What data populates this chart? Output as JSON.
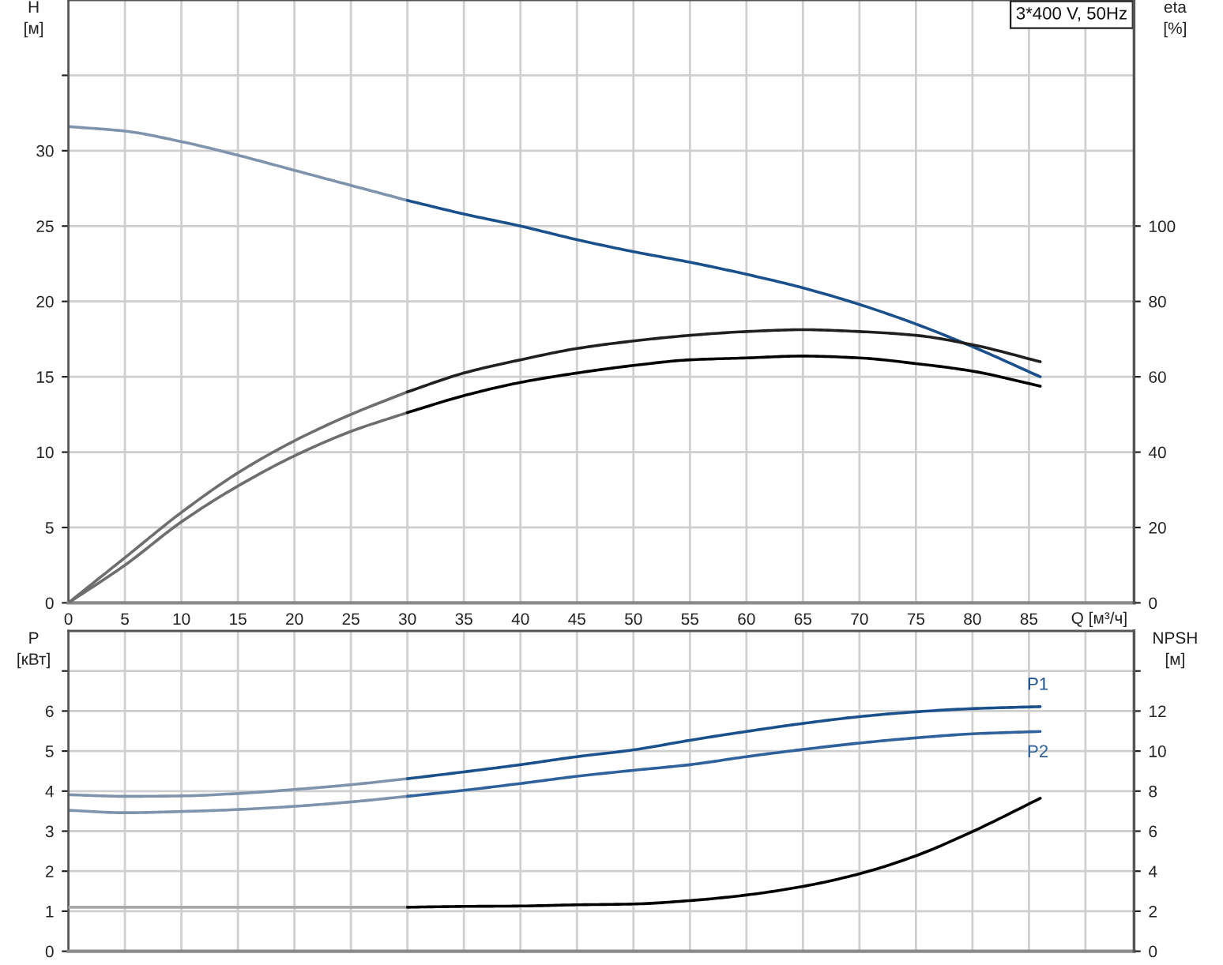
{
  "chart_data": [
    {
      "type": "line",
      "title": "3*400 V, 50Hz",
      "xlabel": "Q [м³/ч]",
      "ylabel": "H\n[м]",
      "y2label": "eta\n[%]",
      "xlim": [
        0,
        94.3
      ],
      "xticks": [
        0,
        5,
        10,
        15,
        20,
        25,
        30,
        35,
        40,
        45,
        50,
        55,
        60,
        65,
        70,
        75,
        80,
        85,
        {
          "value": 90,
          "label": null
        }
      ],
      "ylim": [
        0,
        40
      ],
      "yticks": [
        0,
        5,
        10,
        15,
        20,
        25,
        30,
        {
          "value": 35,
          "label": null
        }
      ],
      "y2lim": [
        0,
        160
      ],
      "y2ticks": [
        0,
        20,
        40,
        60,
        80,
        100
      ],
      "grid": true,
      "series": [
        {
          "color": "#7f93ad",
          "x": [
            0,
            5,
            10,
            15,
            20,
            25,
            30
          ],
          "values": [
            31.6,
            31.3,
            30.6,
            29.7,
            28.7,
            27.7,
            26.7
          ]
        },
        {
          "color": "#1a508c",
          "x": [
            30,
            35,
            40,
            45,
            50,
            55,
            60,
            65,
            70,
            75,
            80,
            86
          ],
          "values": [
            26.7,
            25.8,
            25.0,
            24.1,
            23.3,
            22.6,
            21.8,
            20.9,
            19.8,
            18.5,
            17.0,
            15.0
          ]
        },
        {
          "color": "#6e6e6e",
          "axis": "y2",
          "x": [
            0,
            5,
            10,
            15,
            20,
            25,
            30
          ],
          "values": [
            0,
            12,
            24,
            34.5,
            43,
            50,
            56
          ]
        },
        {
          "color": "#202020",
          "axis": "y2",
          "x": [
            30,
            35,
            40,
            45,
            50,
            55,
            60,
            65,
            70,
            75,
            80,
            86
          ],
          "values": [
            56,
            61,
            64.5,
            67.5,
            69.5,
            71,
            72,
            72.5,
            72,
            71,
            68.5,
            64
          ]
        },
        {
          "color": "#6e6e6e",
          "axis": "y2",
          "x": [
            0,
            5,
            10,
            15,
            20,
            25,
            30
          ],
          "values": [
            0,
            10,
            21.5,
            31,
            39,
            45.5,
            50.5
          ]
        },
        {
          "color": "#000000",
          "axis": "y2",
          "x": [
            30,
            35,
            40,
            45,
            50,
            55,
            60,
            65,
            70,
            75,
            80,
            86
          ],
          "values": [
            50.5,
            55,
            58.5,
            61,
            63,
            64.5,
            65,
            65.5,
            65,
            63.5,
            61.5,
            57.5
          ]
        }
      ]
    },
    {
      "type": "line",
      "ylabel": "P\n[кВт]",
      "y2label": "NPSH\n[м]",
      "tick_labels": "y",
      "xlim": [
        0,
        94.3
      ],
      "xticks": [
        0,
        5,
        10,
        15,
        20,
        25,
        30,
        35,
        40,
        45,
        50,
        55,
        60,
        65,
        70,
        75,
        80,
        85,
        {
          "value": 90,
          "label": null
        }
      ],
      "ylim": [
        0,
        8
      ],
      "yticks": [
        0,
        1,
        2,
        3,
        4,
        5,
        6,
        {
          "value": 7,
          "label": null
        }
      ],
      "y2lim": [
        0,
        16
      ],
      "y2ticks": [
        0,
        2,
        4,
        6,
        8,
        10,
        12,
        {
          "value": 14,
          "label": null
        }
      ],
      "grid": true,
      "series": [
        {
          "color": "#7f93ad",
          "x": [
            0,
            5,
            10,
            15,
            20,
            25,
            30
          ],
          "values": [
            3.91,
            3.87,
            3.88,
            3.94,
            4.04,
            4.16,
            4.31
          ]
        },
        {
          "name": "P1",
          "color": "#1a508c",
          "x": [
            30,
            35,
            40,
            45,
            50,
            55,
            60,
            65,
            70,
            75,
            80,
            86
          ],
          "values": [
            4.31,
            4.48,
            4.66,
            4.86,
            5.03,
            5.27,
            5.49,
            5.69,
            5.86,
            5.98,
            6.06,
            6.11
          ]
        },
        {
          "color": "#7f93ad",
          "x": [
            0,
            5,
            10,
            15,
            20,
            25,
            30
          ],
          "values": [
            3.52,
            3.46,
            3.49,
            3.54,
            3.62,
            3.73,
            3.87
          ]
        },
        {
          "name": "P2",
          "color": "#2f629c",
          "x": [
            30,
            35,
            40,
            45,
            50,
            55,
            60,
            65,
            70,
            75,
            80,
            86
          ],
          "values": [
            3.87,
            4.02,
            4.19,
            4.37,
            4.52,
            4.66,
            4.86,
            5.04,
            5.2,
            5.33,
            5.43,
            5.49
          ]
        },
        {
          "color": "#a8a8a8",
          "axis": "y2",
          "x": [
            0,
            30
          ],
          "values": [
            2.2,
            2.2
          ]
        },
        {
          "color": "#000000",
          "axis": "y2",
          "x": [
            30,
            35,
            40,
            45,
            50,
            55,
            60,
            65,
            70,
            75,
            80,
            86
          ],
          "values": [
            2.2,
            2.24,
            2.26,
            2.32,
            2.36,
            2.53,
            2.81,
            3.24,
            3.87,
            4.77,
            5.98,
            7.64
          ]
        }
      ]
    }
  ]
}
